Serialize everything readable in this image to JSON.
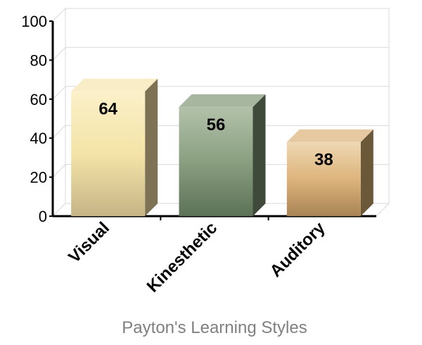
{
  "chart_data": {
    "type": "bar",
    "categories": [
      "Visual",
      "Kinesthetic",
      "Auditory"
    ],
    "values": [
      64,
      56,
      38
    ],
    "data_labels": [
      "64",
      "56",
      "38"
    ],
    "title": "",
    "xlabel": "Payton's Learning Styles",
    "ylabel": "",
    "ylim": [
      0,
      100
    ],
    "yticks": [
      "0",
      "20",
      "40",
      "60",
      "80",
      "100"
    ],
    "grid": true,
    "legend": "none",
    "three_d": true,
    "colors": [
      {
        "top": "#f8edc6",
        "front_top": "#fbf0c9",
        "front_mid": "#f4e4a8",
        "front_bottom": "#c6b486",
        "side": "#7d7354"
      },
      {
        "top": "#a7b79f",
        "front_top": "#b2c2aa",
        "front_mid": "#8a9f80",
        "front_bottom": "#5c7257",
        "side": "#3f4a3b"
      },
      {
        "top": "#e6c9a0",
        "front_top": "#efd8b4",
        "front_mid": "#ddb47c",
        "front_bottom": "#a88354",
        "side": "#6b5838"
      }
    ]
  }
}
